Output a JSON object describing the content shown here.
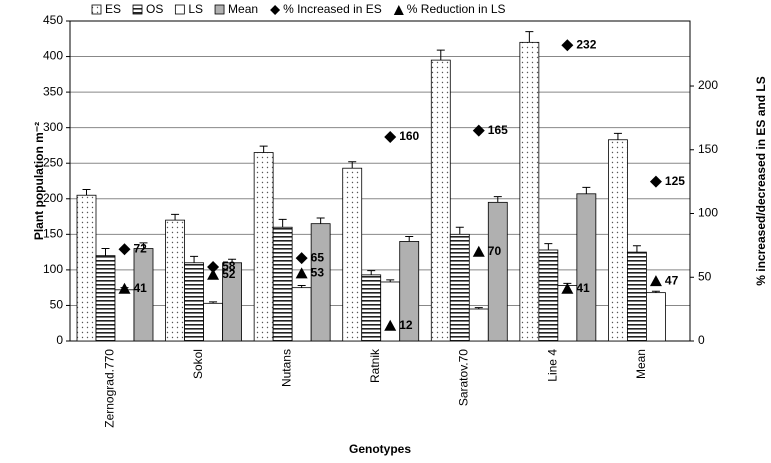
{
  "chart_data": {
    "type": "bar",
    "x_label": "Genotypes",
    "y_label": "Plant population m⁻²",
    "y2_label": "% increased/decreased in ES and LS",
    "categories": [
      "Zernograd.770",
      "Sokol",
      "Nutans",
      "Ratnik",
      "Saratov.70",
      "Line 4",
      "Mean"
    ],
    "series": [
      {
        "name": "ES",
        "color": "#ffffff",
        "pattern": "dots",
        "values": [
          205,
          170,
          265,
          243,
          395,
          420,
          283
        ],
        "errors": [
          8,
          8,
          9,
          9,
          14,
          15,
          9
        ]
      },
      {
        "name": "OS",
        "color": "#ffffff",
        "pattern": "stripes",
        "values": [
          120,
          110,
          160,
          93,
          150,
          128,
          125
        ],
        "errors": [
          10,
          9,
          11,
          6,
          10,
          9,
          9
        ]
      },
      {
        "name": "LS",
        "color": "#ffffff",
        "values": [
          72,
          53,
          75,
          83,
          45,
          78,
          68
        ],
        "errors": [
          3,
          2,
          3,
          3,
          2,
          3,
          2
        ]
      },
      {
        "name": "Mean",
        "color": "#b0b0b0",
        "values": [
          130,
          110,
          165,
          140,
          195,
          207,
          null
        ],
        "errors": [
          8,
          5,
          8,
          7,
          8,
          9,
          null
        ]
      },
      {
        "name": "% Increased in ES",
        "type": "scatter",
        "marker": "diamond",
        "axis": "y2",
        "color": "#000000",
        "values": [
          72,
          58,
          65,
          160,
          165,
          232,
          125
        ]
      },
      {
        "name": "% Reduction in LS",
        "type": "scatter",
        "marker": "triangle",
        "axis": "y2",
        "color": "#000000",
        "values": [
          41,
          52,
          53,
          12,
          70,
          41,
          47
        ]
      }
    ],
    "ylim": [
      0,
      450
    ],
    "yticks": [
      0,
      50,
      100,
      150,
      200,
      250,
      300,
      350,
      400,
      450
    ],
    "y2lim": [
      0,
      251
    ],
    "y2ticks": [
      0,
      50,
      100,
      150,
      200
    ],
    "grid": true,
    "legend": "top"
  }
}
